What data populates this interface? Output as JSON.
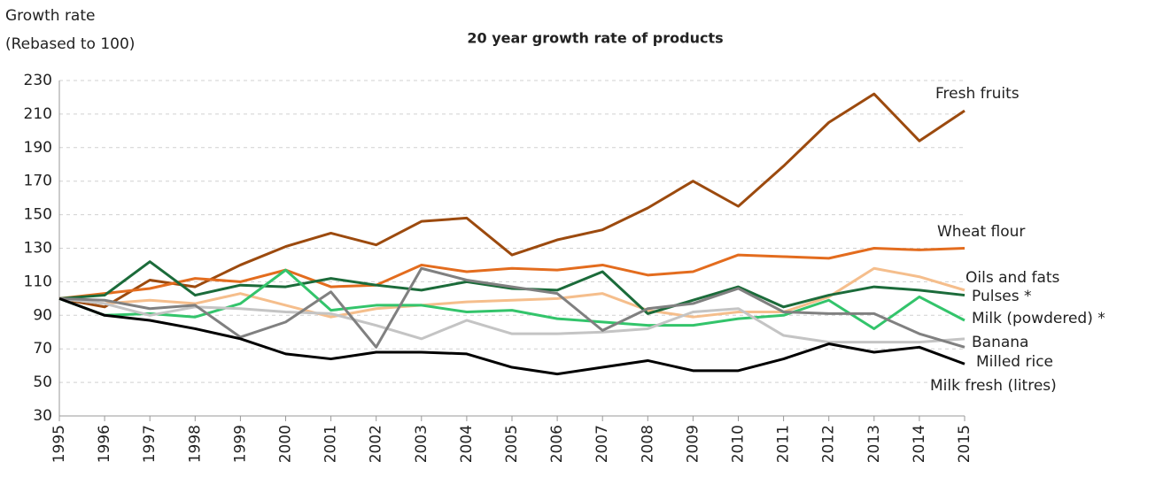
{
  "chart_data": {
    "type": "line",
    "title": "20 year growth rate of products",
    "y_label": [
      "Growth rate",
      "(Rebased to 100)"
    ],
    "categories": [
      "1995",
      "1996",
      "1997",
      "1998",
      "1999",
      "2000",
      "2001",
      "2002",
      "2003",
      "2004",
      "2005",
      "2006",
      "2007",
      "2008",
      "2009",
      "2010",
      "2011",
      "2012",
      "2013",
      "2014",
      "2015"
    ],
    "ylim": [
      30,
      230
    ],
    "yticks": [
      30,
      50,
      70,
      90,
      110,
      130,
      150,
      170,
      190,
      210,
      230
    ],
    "grid": true,
    "series": [
      {
        "name": "Fresh fruits",
        "color": "#9c4a0e",
        "values": [
          100,
          95,
          111,
          107,
          120,
          131,
          139,
          132,
          146,
          148,
          126,
          135,
          141,
          154,
          170,
          155,
          179,
          205,
          222,
          194,
          212
        ]
      },
      {
        "name": "Wheat flour",
        "color": "#e36c1e",
        "values": [
          100,
          103,
          106,
          112,
          110,
          117,
          107,
          108,
          120,
          116,
          118,
          117,
          120,
          114,
          116,
          126,
          125,
          124,
          130,
          129,
          130
        ]
      },
      {
        "name": "Oils and fats",
        "color": "#f5be8c",
        "values": [
          100,
          97,
          99,
          97,
          103,
          96,
          89,
          94,
          96,
          98,
          99,
          100,
          103,
          93,
          89,
          92,
          92,
          101,
          118,
          113,
          105
        ]
      },
      {
        "name": "Pulses *",
        "color": "#1b6b3a",
        "values": [
          100,
          102,
          122,
          102,
          108,
          107,
          112,
          108,
          105,
          110,
          106,
          105,
          116,
          91,
          99,
          107,
          95,
          102,
          107,
          105,
          102
        ]
      },
      {
        "name": "Milk (powdered) *",
        "color": "#33c46b",
        "values": [
          100,
          90,
          91,
          89,
          97,
          117,
          93,
          96,
          96,
          92,
          93,
          88,
          86,
          84,
          84,
          88,
          90,
          99,
          82,
          101,
          87
        ]
      },
      {
        "name": "Banana",
        "color": "#c4c4c4",
        "values": [
          100,
          97,
          90,
          95,
          94,
          92,
          91,
          84,
          76,
          87,
          79,
          79,
          80,
          82,
          92,
          94,
          78,
          74,
          74,
          74,
          76
        ]
      },
      {
        "name": "Milled rice",
        "color": "#808080",
        "values": [
          100,
          99,
          94,
          96,
          77,
          86,
          104,
          71,
          118,
          111,
          107,
          103,
          81,
          94,
          97,
          106,
          92,
          91,
          91,
          79,
          71
        ]
      },
      {
        "name": "Milk fresh (litres)",
        "color": "#000000",
        "values": [
          100,
          90,
          87,
          82,
          76,
          67,
          64,
          68,
          68,
          67,
          59,
          55,
          59,
          63,
          57,
          57,
          64,
          73,
          68,
          71,
          61
        ]
      }
    ]
  }
}
